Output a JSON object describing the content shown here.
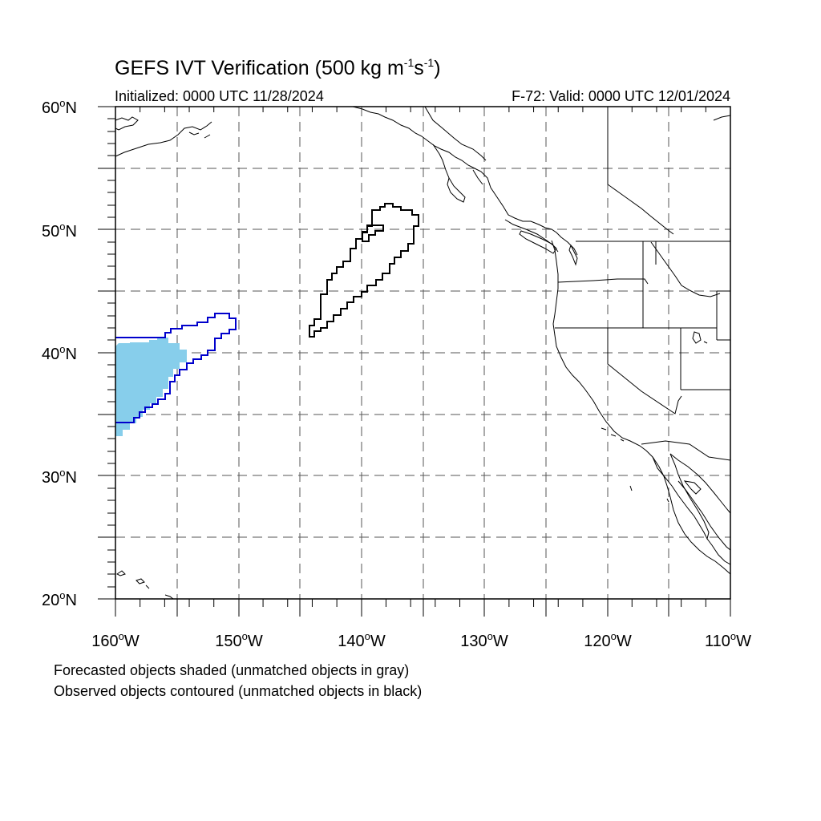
{
  "title": {
    "main_prefix": "GEFS IVT Verification (500 kg m",
    "exp1": "-1",
    "mid": "s",
    "exp2": "-1",
    "suffix": ")"
  },
  "initialized": "Initialized: 0000 UTC 11/28/2024",
  "valid": "F-72: Valid: 0000 UTC 12/01/2024",
  "axes": {
    "lat_labels": [
      {
        "num": "60",
        "hemi": "N"
      },
      {
        "num": "50",
        "hemi": "N"
      },
      {
        "num": "40",
        "hemi": "N"
      },
      {
        "num": "30",
        "hemi": "N"
      },
      {
        "num": "20",
        "hemi": "N"
      }
    ],
    "lon_labels": [
      {
        "num": "160",
        "hemi": "W"
      },
      {
        "num": "150",
        "hemi": "W"
      },
      {
        "num": "140",
        "hemi": "W"
      },
      {
        "num": "130",
        "hemi": "W"
      },
      {
        "num": "120",
        "hemi": "W"
      },
      {
        "num": "110",
        "hemi": "W"
      }
    ],
    "lat_range": [
      20,
      60
    ],
    "lon_range": [
      -160,
      -110
    ],
    "gridline_style": "dashed"
  },
  "notes": {
    "forecast": "Forecasted objects shaded (unmatched objects in gray)",
    "observed": "Observed objects contoured (unmatched objects in black)"
  },
  "colors": {
    "forecast_fill": "#87ceeb",
    "matched_contour": "#0000cc",
    "unmatched_contour": "#000000",
    "coastline": "#000000",
    "grid": "#555555"
  }
}
